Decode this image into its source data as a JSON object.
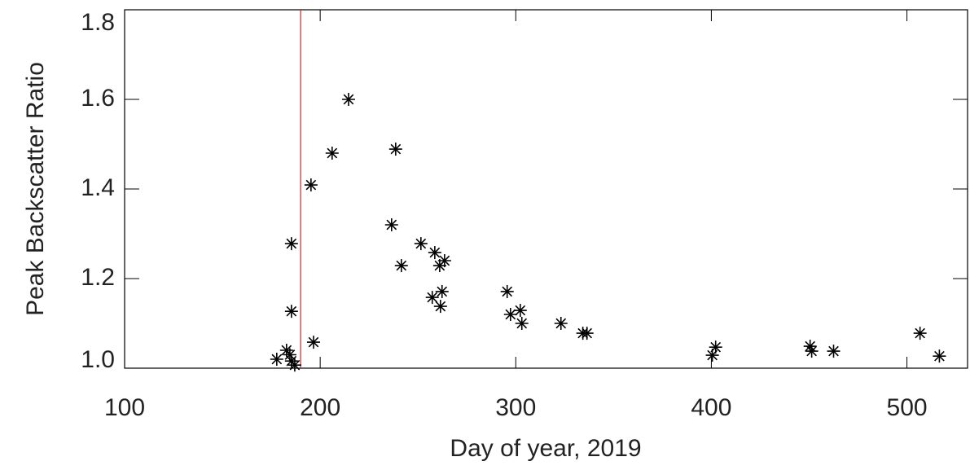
{
  "chart_data": {
    "type": "scatter",
    "xlabel": "Day of year, 2019",
    "ylabel": "Peak Backscatter Ratio",
    "xlim": [
      100,
      531
    ],
    "ylim": [
      1.0,
      1.8
    ],
    "xticks": [
      100,
      200,
      300,
      400,
      500
    ],
    "yticks": [
      {
        "value": 1.0,
        "label": "1.0"
      },
      1.2,
      1.4,
      1.6,
      1.8
    ],
    "vline": {
      "x": 190,
      "color": "#e0201c"
    },
    "color": "#000000",
    "x": [
      177.8,
      182.8,
      184.5,
      185.3,
      187.0,
      185.3,
      185.3,
      195.3,
      196.6,
      206.1,
      214.5,
      236.5,
      238.6,
      241.5,
      251.5,
      258.6,
      261.1,
      263.6,
      257.3,
      262.3,
      261.5,
      295.6,
      297.3,
      302.3,
      303.1,
      323.1,
      334.3,
      336.4,
      400.5,
      402.2,
      450.5,
      451.3,
      462.5,
      506.7,
      516.6
    ],
    "y": [
      1.02,
      1.04,
      1.03,
      1.016,
      1.007,
      1.278,
      1.127,
      1.409,
      1.058,
      1.48,
      1.6,
      1.32,
      1.489,
      1.229,
      1.278,
      1.258,
      1.229,
      1.24,
      1.158,
      1.171,
      1.138,
      1.171,
      1.12,
      1.129,
      1.1,
      1.1,
      1.078,
      1.078,
      1.029,
      1.047,
      1.049,
      1.038,
      1.038,
      1.078,
      1.027
    ]
  }
}
